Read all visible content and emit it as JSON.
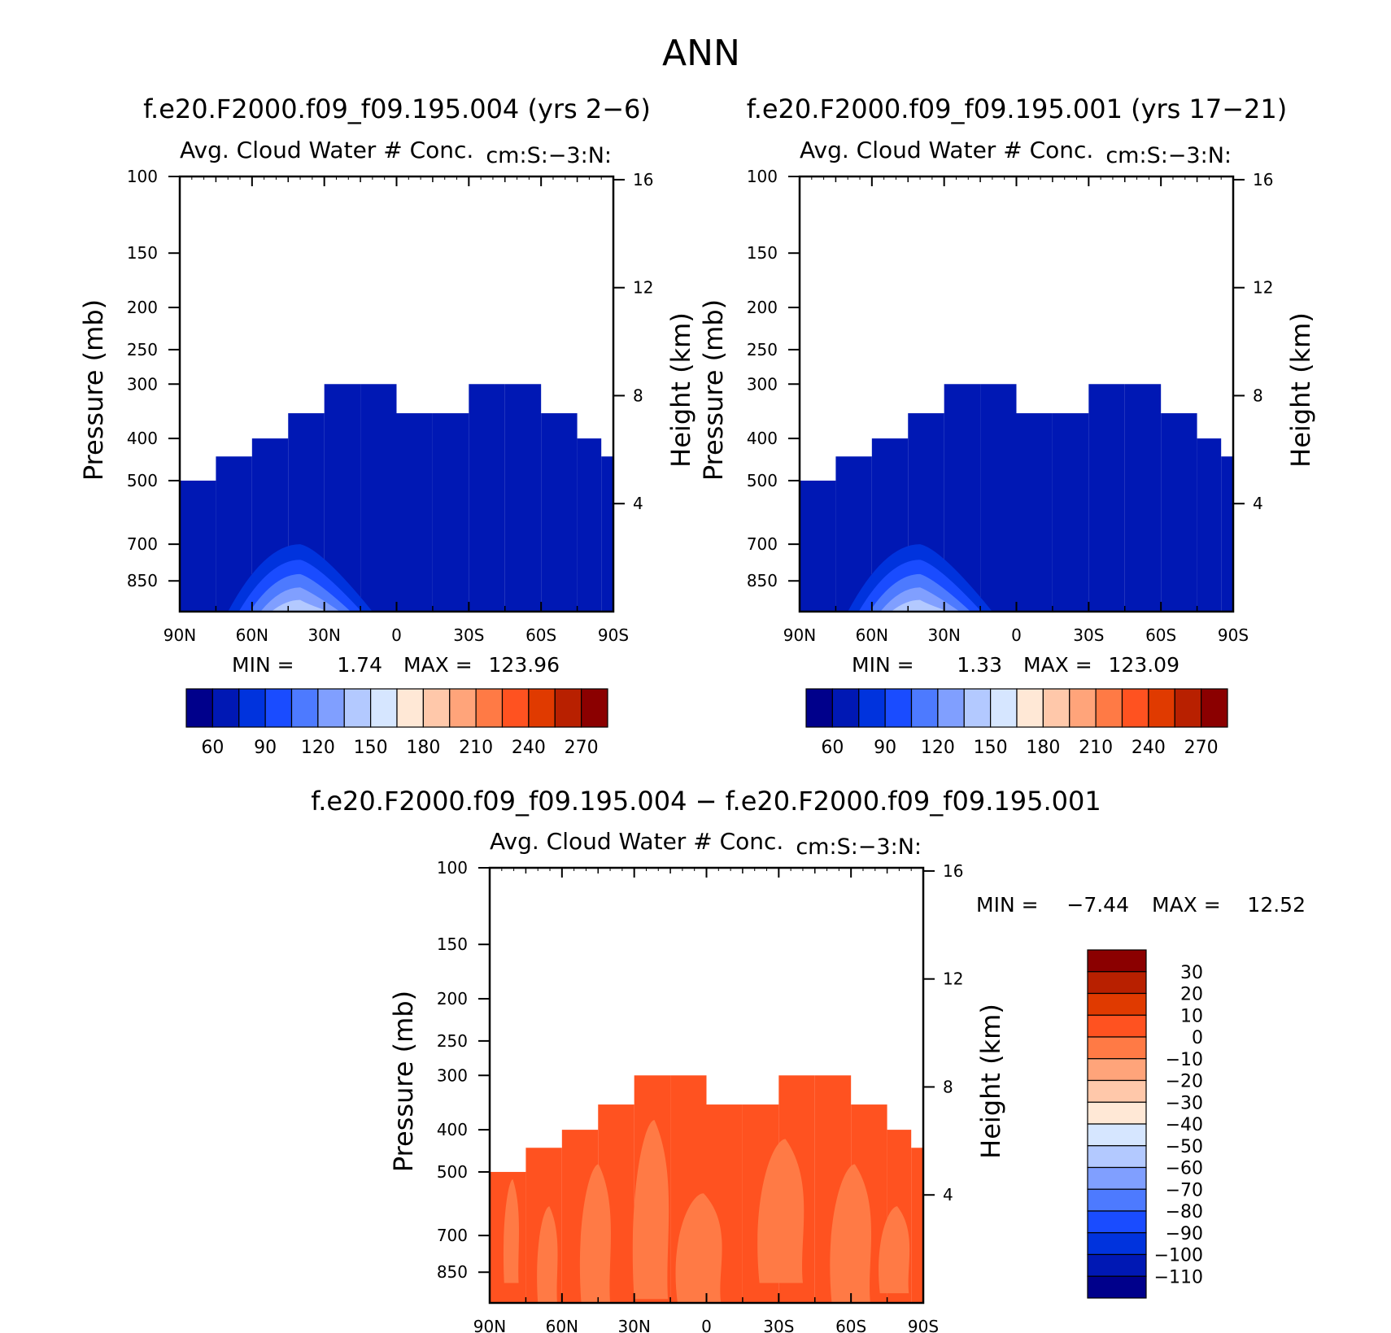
{
  "figure": {
    "title": "ANN"
  },
  "chart_data": [
    {
      "type": "heatmap",
      "title": "f.e20.F2000.f09_f09.195.004 (yrs 2-6)",
      "subtitle": "Avg. Cloud Water # Conc.",
      "units_label": "cm:S:-3:N:",
      "xlabel": "",
      "ylabel": "Pressure (mb)",
      "ylabel_right": "Height (km)",
      "x_ticks": [
        "90N",
        "60N",
        "30N",
        "0",
        "30S",
        "60S",
        "90S"
      ],
      "y_ticks": [
        100,
        150,
        200,
        250,
        300,
        400,
        500,
        700,
        850
      ],
      "y_right_ticks": [
        16,
        12,
        8,
        4
      ],
      "ylim": [
        100,
        1000
      ],
      "y_scale": "log-pressure",
      "min_label": "MIN =",
      "min": "1.74",
      "max_label": "MAX =",
      "max": "123.96",
      "colorbar": {
        "labels": [
          "60",
          "90",
          "120",
          "150",
          "180",
          "210",
          "240",
          "270"
        ],
        "colors": [
          "#00008b",
          "#0018b4",
          "#0033dd",
          "#1a4cff",
          "#4d7aff",
          "#809fff",
          "#b3c9ff",
          "#d6e6ff",
          "#ffe8d6",
          "#ffc8aa",
          "#ffa47a",
          "#ff7a45",
          "#ff5220",
          "#e03a00",
          "#b82000",
          "#8b0000"
        ]
      },
      "field": {
        "columns_lat": [
          -90,
          -75,
          -60,
          -45,
          -30,
          -15,
          0,
          15,
          30,
          45,
          60,
          75,
          85,
          90
        ],
        "top_pressure_mb": [
          500,
          440,
          400,
          350,
          300,
          300,
          350,
          350,
          300,
          300,
          350,
          400,
          440,
          500
        ],
        "bulk_value": 45,
        "core_lat_range": [
          60,
          10
        ],
        "core_peak_value": 123.96
      }
    },
    {
      "type": "heatmap",
      "title": "f.e20.F2000.f09_f09.195.001 (yrs 17-21)",
      "subtitle": "Avg. Cloud Water # Conc.",
      "units_label": "cm:S:-3:N:",
      "xlabel": "",
      "ylabel": "Pressure (mb)",
      "ylabel_right": "Height (km)",
      "x_ticks": [
        "90N",
        "60N",
        "30N",
        "0",
        "30S",
        "60S",
        "90S"
      ],
      "y_ticks": [
        100,
        150,
        200,
        250,
        300,
        400,
        500,
        700,
        850
      ],
      "y_right_ticks": [
        16,
        12,
        8,
        4
      ],
      "ylim": [
        100,
        1000
      ],
      "y_scale": "log-pressure",
      "min_label": "MIN =",
      "min": "1.33",
      "max_label": "MAX =",
      "max": "123.09",
      "colorbar": {
        "labels": [
          "60",
          "90",
          "120",
          "150",
          "180",
          "210",
          "240",
          "270"
        ],
        "colors": [
          "#00008b",
          "#0018b4",
          "#0033dd",
          "#1a4cff",
          "#4d7aff",
          "#809fff",
          "#b3c9ff",
          "#d6e6ff",
          "#ffe8d6",
          "#ffc8aa",
          "#ffa47a",
          "#ff7a45",
          "#ff5220",
          "#e03a00",
          "#b82000",
          "#8b0000"
        ]
      },
      "field": {
        "columns_lat": [
          -90,
          -75,
          -60,
          -45,
          -30,
          -15,
          0,
          15,
          30,
          45,
          60,
          75,
          85,
          90
        ],
        "top_pressure_mb": [
          500,
          440,
          400,
          350,
          300,
          300,
          350,
          350,
          300,
          300,
          350,
          400,
          440,
          500
        ],
        "bulk_value": 45,
        "core_lat_range": [
          60,
          10
        ],
        "core_peak_value": 123.09
      }
    },
    {
      "type": "heatmap",
      "title": "f.e20.F2000.f09_f09.195.004 - f.e20.F2000.f09_f09.195.001",
      "subtitle": "Avg. Cloud Water # Conc.",
      "units_label": "cm:S:-3:N:",
      "xlabel": "",
      "ylabel": "Pressure (mb)",
      "ylabel_right": "Height (km)",
      "x_ticks": [
        "90N",
        "60N",
        "30N",
        "0",
        "30S",
        "60S",
        "90S"
      ],
      "y_ticks": [
        100,
        150,
        200,
        250,
        300,
        400,
        500,
        700,
        850
      ],
      "y_right_ticks": [
        16,
        12,
        8,
        4
      ],
      "ylim": [
        100,
        1000
      ],
      "y_scale": "log-pressure",
      "min_label": "MIN =",
      "min": "-7.44",
      "max_label": "MAX =",
      "max": "12.52",
      "colorbar": {
        "labels": [
          "30",
          "20",
          "10",
          "0",
          "-10",
          "-20",
          "-30",
          "-40",
          "-50",
          "-60",
          "-70",
          "-80",
          "-90",
          "-100",
          "-110"
        ],
        "colors": [
          "#8b0000",
          "#b82000",
          "#e03a00",
          "#ff5220",
          "#ff7a45",
          "#ffa47a",
          "#ffc8aa",
          "#ffe8d6",
          "#d6e6ff",
          "#b3c9ff",
          "#809fff",
          "#4d7aff",
          "#1a4cff",
          "#0033dd",
          "#0018b4",
          "#00008b"
        ]
      },
      "field": {
        "dominant_range": [
          0,
          10
        ],
        "secondary_range": [
          -10,
          0
        ]
      }
    }
  ]
}
